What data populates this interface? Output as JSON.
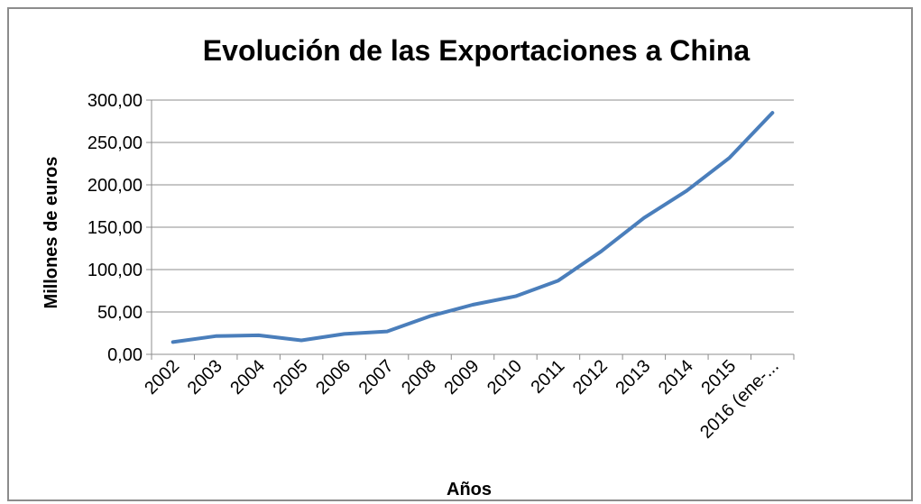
{
  "chart_data": {
    "type": "line",
    "title": "Evolución de las Exportaciones a China",
    "xlabel": "Años",
    "ylabel": "Millones de euros",
    "categories": [
      "2002",
      "2003",
      "2004",
      "2005",
      "2006",
      "2007",
      "2008",
      "2009",
      "2010",
      "2011",
      "2012",
      "2013",
      "2014",
      "2015",
      "2016 (ene-..."
    ],
    "series": [
      {
        "values": [
          14.5,
          21.5,
          22.5,
          16.5,
          24.0,
          27.0,
          45.0,
          58.5,
          68.5,
          87.0,
          121.5,
          161.0,
          193.0,
          232.0,
          285.0
        ]
      }
    ],
    "y_ticks": [
      "0,00",
      "50,00",
      "100,00",
      "150,00",
      "200,00",
      "250,00",
      "300,00"
    ],
    "ylim": [
      0,
      300
    ],
    "grid": "horizontal",
    "legend": "none",
    "line_color": "#4a7ebb"
  }
}
